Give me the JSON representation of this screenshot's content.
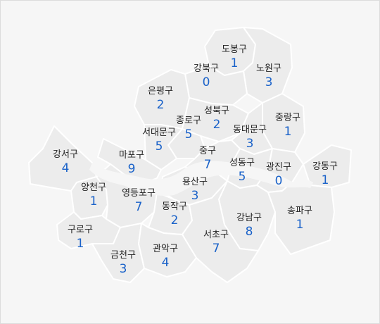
{
  "map": {
    "accent_color": "#1a62c9",
    "districts": [
      {
        "key": "dobong",
        "name": "도봉구",
        "count": "1"
      },
      {
        "key": "gangbuk",
        "name": "강북구",
        "count": "0"
      },
      {
        "key": "nowon",
        "name": "노원구",
        "count": "3"
      },
      {
        "key": "eunpyeong",
        "name": "은평구",
        "count": "2"
      },
      {
        "key": "seongbuk",
        "name": "성북구",
        "count": "2"
      },
      {
        "key": "jungnang",
        "name": "중랑구",
        "count": "1"
      },
      {
        "key": "jongno",
        "name": "종로구",
        "count": "5"
      },
      {
        "key": "seodaemun",
        "name": "서대문구",
        "count": "5"
      },
      {
        "key": "dongdaemun",
        "name": "동대문구",
        "count": "3"
      },
      {
        "key": "gangseo",
        "name": "강서구",
        "count": "4"
      },
      {
        "key": "mapo",
        "name": "마포구",
        "count": "9"
      },
      {
        "key": "jung",
        "name": "중구",
        "count": "7"
      },
      {
        "key": "seongdong",
        "name": "성동구",
        "count": "5"
      },
      {
        "key": "gwangjin",
        "name": "광진구",
        "count": "0"
      },
      {
        "key": "gangdong",
        "name": "강동구",
        "count": "1"
      },
      {
        "key": "yangcheon",
        "name": "양천구",
        "count": "1"
      },
      {
        "key": "yeongdeungpo",
        "name": "영등포구",
        "count": "7"
      },
      {
        "key": "yongsan",
        "name": "용산구",
        "count": "3"
      },
      {
        "key": "dongjak",
        "name": "동작구",
        "count": "2"
      },
      {
        "key": "gangnam",
        "name": "강남구",
        "count": "8"
      },
      {
        "key": "songpa",
        "name": "송파구",
        "count": "1"
      },
      {
        "key": "guro",
        "name": "구로구",
        "count": "1"
      },
      {
        "key": "seocho",
        "name": "서초구",
        "count": "7"
      },
      {
        "key": "geumcheon",
        "name": "금천구",
        "count": "3"
      },
      {
        "key": "gwanak",
        "name": "관악구",
        "count": "4"
      }
    ]
  }
}
